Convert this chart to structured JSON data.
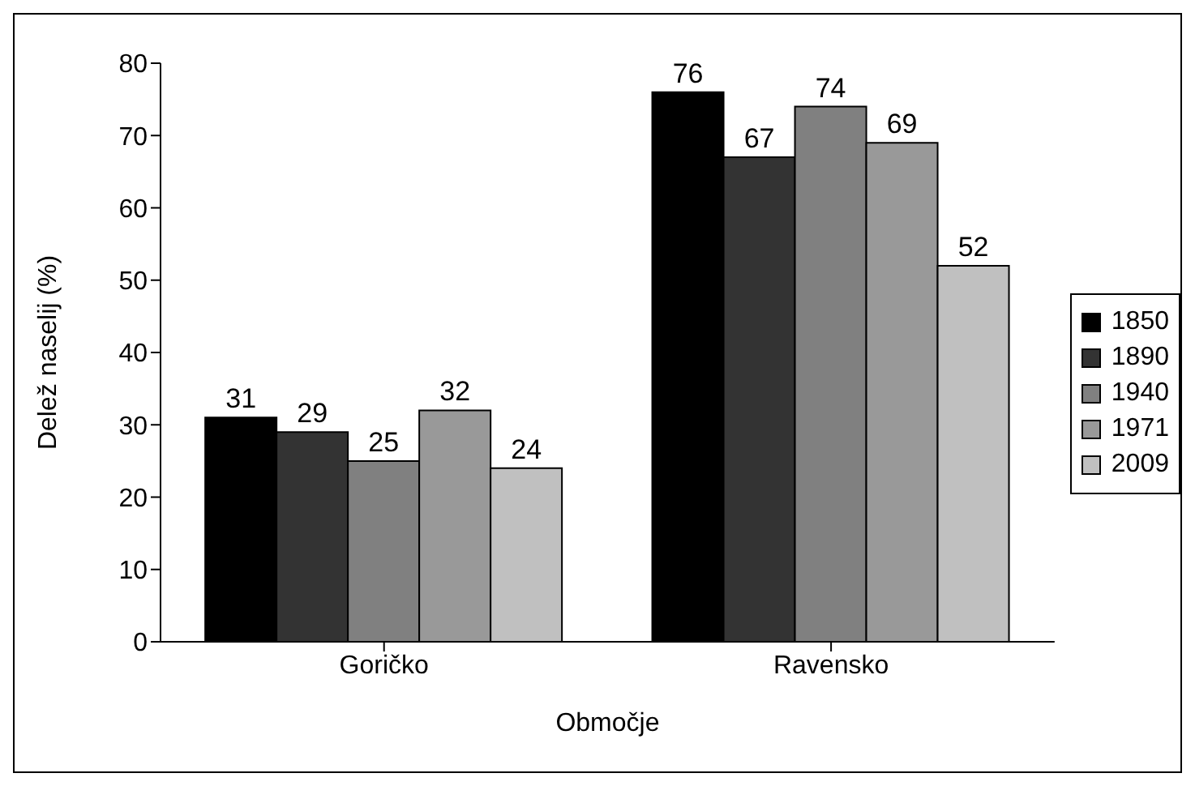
{
  "chart_data": {
    "type": "bar",
    "xlabel": "Območje",
    "ylabel": "Delež naselij (%)",
    "categories": [
      "Goričko",
      "Ravensko"
    ],
    "series": [
      {
        "name": "1850",
        "color": "#000000",
        "values": [
          31,
          76
        ]
      },
      {
        "name": "1890",
        "color": "#333333",
        "values": [
          29,
          67
        ]
      },
      {
        "name": "1940",
        "color": "#808080",
        "values": [
          25,
          74
        ]
      },
      {
        "name": "1971",
        "color": "#999999",
        "values": [
          32,
          69
        ]
      },
      {
        "name": "2009",
        "color": "#c0c0c0",
        "values": [
          24,
          52
        ]
      }
    ],
    "ylim": [
      0,
      80
    ],
    "yticks": [
      0,
      10,
      20,
      30,
      40,
      50,
      60,
      70,
      80
    ],
    "data_labels": true,
    "grid": false,
    "legend": "right"
  }
}
